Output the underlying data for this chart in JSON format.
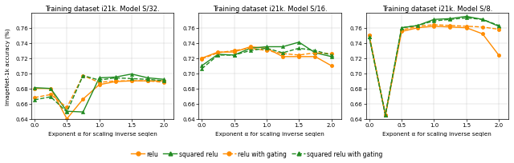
{
  "titles": [
    "Training dataset i21k. Model S/32.",
    "Training dataset i21k. Model S/16.",
    "Training dataset i21k. Model S/8."
  ],
  "xlabel": "Exponent α for scaling inverse seqlen",
  "ylabel": "ImageNet-1k accuracy (%)",
  "x": [
    0.0,
    0.25,
    0.5,
    0.75,
    1.0,
    1.25,
    1.5,
    1.75,
    2.0
  ],
  "series": {
    "relu": {
      "color": "#FF8C00",
      "dashed": false,
      "marker": "o",
      "data": [
        [
          0.68,
          0.68,
          0.64,
          0.666,
          0.685,
          0.689,
          0.69,
          0.69,
          0.69
        ],
        [
          0.72,
          0.728,
          0.728,
          0.735,
          0.733,
          0.722,
          0.722,
          0.722,
          0.71
        ],
        [
          0.75,
          0.645,
          0.755,
          0.76,
          0.762,
          0.761,
          0.76,
          0.752,
          0.724
        ]
      ]
    },
    "squared relu": {
      "color": "#228B22",
      "dashed": false,
      "marker": "^",
      "data": [
        [
          0.681,
          0.68,
          0.65,
          0.649,
          0.694,
          0.695,
          0.699,
          0.694,
          0.692
        ],
        [
          0.71,
          0.725,
          0.724,
          0.733,
          0.735,
          0.735,
          0.741,
          0.727,
          0.722
        ],
        [
          0.748,
          0.645,
          0.76,
          0.763,
          0.771,
          0.772,
          0.775,
          0.771,
          0.762
        ]
      ]
    },
    "relu with gating": {
      "color": "#FF8C00",
      "dashed": true,
      "marker": "o",
      "data": [
        [
          0.668,
          0.672,
          0.655,
          0.697,
          0.688,
          0.69,
          0.69,
          0.69,
          0.688
        ],
        [
          0.719,
          0.727,
          0.73,
          0.733,
          0.73,
          0.726,
          0.724,
          0.727,
          0.726
        ],
        [
          0.75,
          0.645,
          0.757,
          0.762,
          0.764,
          0.763,
          0.762,
          0.761,
          0.758
        ]
      ]
    },
    "squared relu with gating": {
      "color": "#228B22",
      "dashed": true,
      "marker": "^",
      "data": [
        [
          0.665,
          0.669,
          0.649,
          0.697,
          0.691,
          0.694,
          0.693,
          0.692,
          0.69
        ],
        [
          0.706,
          0.724,
          0.724,
          0.73,
          0.733,
          0.727,
          0.733,
          0.73,
          0.724
        ],
        [
          0.748,
          0.645,
          0.76,
          0.763,
          0.769,
          0.771,
          0.773,
          0.771,
          0.763
        ]
      ]
    }
  },
  "ylim": [
    0.64,
    0.78
  ],
  "yticks": [
    0.64,
    0.66,
    0.68,
    0.7,
    0.72,
    0.74,
    0.76
  ],
  "xticks": [
    0.0,
    0.5,
    1.0,
    1.5,
    2.0
  ],
  "background_color": "#ffffff"
}
